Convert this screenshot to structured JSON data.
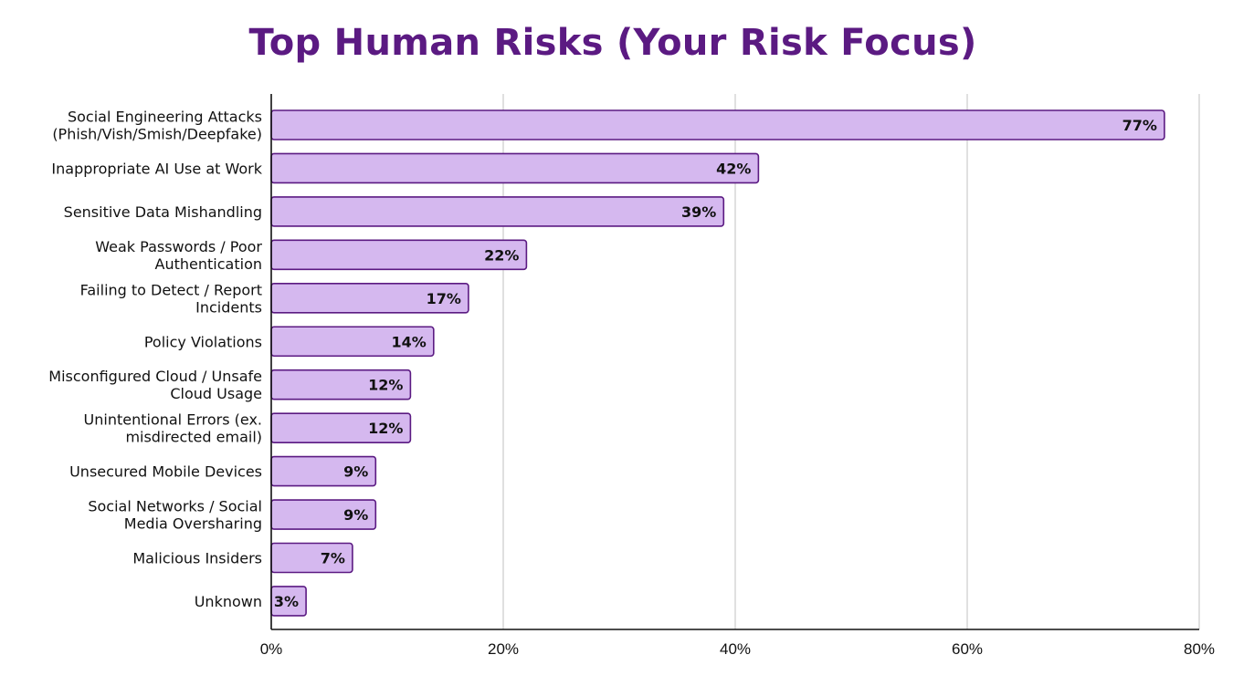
{
  "chart_data": {
    "type": "bar",
    "orientation": "horizontal",
    "title": "Top Human Risks (Your Risk Focus)",
    "categories": [
      "Social Engineering Attacks\n(Phish/Vish/Smish/Deepfake)",
      "Inappropriate AI Use at Work",
      "Sensitive Data Mishandling",
      "Weak Passwords / Poor\nAuthentication",
      "Failing to Detect / Report\nIncidents",
      "Policy Violations",
      "Misconfigured Cloud / Unsafe\nCloud Usage",
      "Unintentional Errors (ex.\nmisdirected email)",
      "Unsecured Mobile Devices",
      "Social Networks / Social\nMedia Oversharing",
      "Malicious Insiders",
      "Unknown"
    ],
    "values": [
      77,
      42,
      39,
      22,
      17,
      14,
      12,
      12,
      9,
      9,
      7,
      3
    ],
    "data_labels": [
      "77%",
      "42%",
      "39%",
      "22%",
      "17%",
      "14%",
      "12%",
      "12%",
      "9%",
      "9%",
      "7%",
      "3%"
    ],
    "xlim": [
      0,
      80
    ],
    "xticks": [
      0,
      20,
      40,
      60,
      80
    ],
    "xtick_labels": [
      "0%",
      "20%",
      "40%",
      "60%",
      "80%"
    ],
    "xlabel": "",
    "ylabel": "",
    "grid": "vertical",
    "legend": "none",
    "colors": {
      "bar_fill": "#d5b8ef",
      "bar_stroke": "#5b1a82",
      "title": "#5b1a82",
      "grid": "#cccccc",
      "axis": "#111111"
    }
  }
}
